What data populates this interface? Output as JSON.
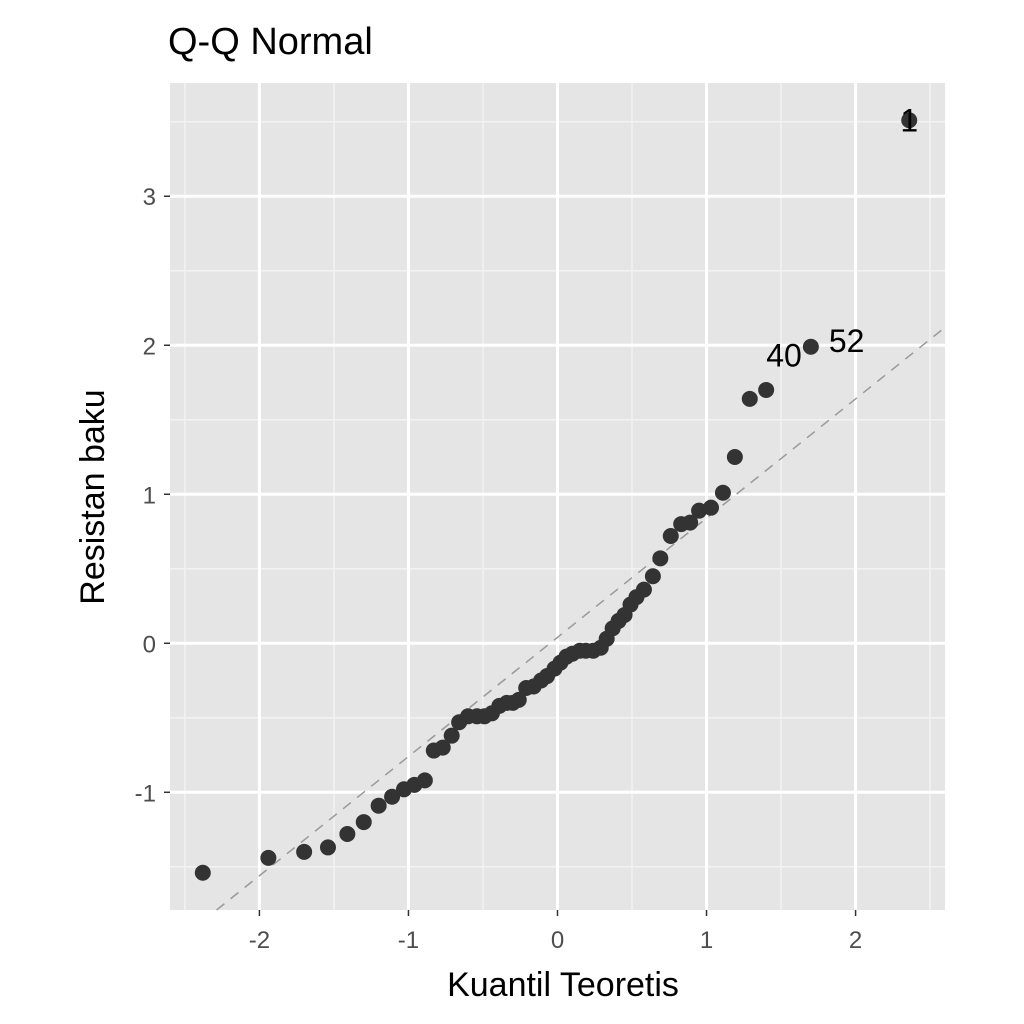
{
  "chart_data": {
    "type": "scatter",
    "title": "Q-Q Normal",
    "xlabel": "Kuantil Teoretis",
    "ylabel": "Resistan baku",
    "xlim": [
      -2.6,
      2.6
    ],
    "ylim": [
      -1.79,
      3.76
    ],
    "xticks": [
      -2,
      -1,
      0,
      1,
      2
    ],
    "yticks": [
      -1,
      0,
      1,
      2,
      3
    ],
    "xtick_labels": [
      "-2",
      "-1",
      "0",
      "1",
      "2"
    ],
    "ytick_labels": [
      "-1",
      "0",
      "1",
      "2",
      "3"
    ],
    "grid": true,
    "point_color": "#333333",
    "panel_color": "#e5e5e5",
    "reference_line": {
      "intercept": 0.04,
      "slope": 0.8,
      "style": "dashed",
      "color": "#999999"
    },
    "points": [
      [
        -2.38,
        -1.54
      ],
      [
        -1.94,
        -1.44
      ],
      [
        -1.7,
        -1.4
      ],
      [
        -1.54,
        -1.37
      ],
      [
        -1.41,
        -1.28
      ],
      [
        -1.3,
        -1.2
      ],
      [
        -1.2,
        -1.09
      ],
      [
        -1.11,
        -1.03
      ],
      [
        -1.03,
        -0.98
      ],
      [
        -0.96,
        -0.95
      ],
      [
        -0.89,
        -0.92
      ],
      [
        -0.83,
        -0.72
      ],
      [
        -0.77,
        -0.7
      ],
      [
        -0.71,
        -0.62
      ],
      [
        -0.66,
        -0.53
      ],
      [
        -0.6,
        -0.49
      ],
      [
        -0.54,
        -0.49
      ],
      [
        -0.49,
        -0.49
      ],
      [
        -0.44,
        -0.47
      ],
      [
        -0.39,
        -0.42
      ],
      [
        -0.34,
        -0.4
      ],
      [
        -0.3,
        -0.4
      ],
      [
        -0.26,
        -0.38
      ],
      [
        -0.21,
        -0.3
      ],
      [
        -0.16,
        -0.29
      ],
      [
        -0.11,
        -0.25
      ],
      [
        -0.07,
        -0.22
      ],
      [
        -0.02,
        -0.17
      ],
      [
        0.02,
        -0.13
      ],
      [
        0.06,
        -0.09
      ],
      [
        0.1,
        -0.07
      ],
      [
        0.15,
        -0.05
      ],
      [
        0.19,
        -0.05
      ],
      [
        0.24,
        -0.05
      ],
      [
        0.29,
        -0.03
      ],
      [
        0.33,
        0.03
      ],
      [
        0.37,
        0.1
      ],
      [
        0.41,
        0.15
      ],
      [
        0.45,
        0.19
      ],
      [
        0.49,
        0.26
      ],
      [
        0.53,
        0.31
      ],
      [
        0.58,
        0.36
      ],
      [
        0.64,
        0.45
      ],
      [
        0.69,
        0.57
      ],
      [
        0.76,
        0.72
      ],
      [
        0.83,
        0.8
      ],
      [
        0.89,
        0.81
      ],
      [
        0.95,
        0.89
      ],
      [
        1.03,
        0.91
      ],
      [
        1.11,
        1.01
      ],
      [
        1.19,
        1.25
      ],
      [
        1.29,
        1.64
      ],
      [
        1.4,
        1.7
      ],
      [
        1.7,
        1.99
      ],
      [
        2.36,
        3.51
      ]
    ],
    "annotations": [
      {
        "label": "1",
        "x": 2.36,
        "y": 3.51
      },
      {
        "label": "40",
        "x": 1.52,
        "y": 1.93
      },
      {
        "label": "52",
        "x": 1.94,
        "y": 2.03
      }
    ]
  }
}
